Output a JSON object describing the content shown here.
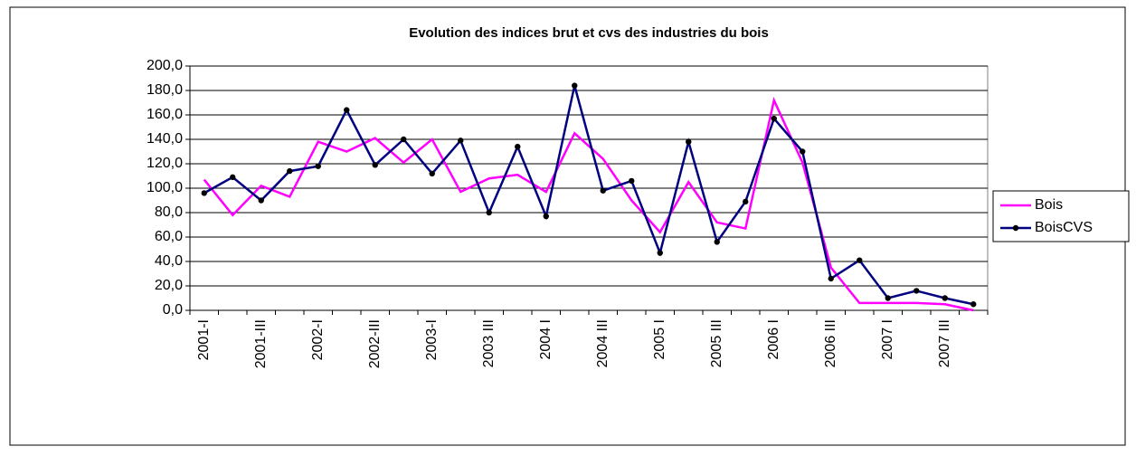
{
  "chart_data": {
    "type": "line",
    "title": "Evolution des indices brut et cvs des industries du bois",
    "categories": [
      "2001-I",
      null,
      "2001-III",
      null,
      "2002-I",
      null,
      "2002-III",
      null,
      "2003-I",
      null,
      "2003 III",
      null,
      "2004 I",
      null,
      "2004 III",
      null,
      "2005 I",
      null,
      "2005 III",
      null,
      "2006 I",
      null,
      "2006 III",
      null,
      "2007 I",
      null,
      "2007 III",
      null
    ],
    "series": [
      {
        "name": "Bois",
        "color": "#ff00ff",
        "markers": false,
        "values": [
          107,
          78,
          102,
          93,
          138,
          130,
          141,
          121,
          140,
          97,
          108,
          111,
          97,
          145,
          124,
          90,
          64,
          105,
          72,
          67,
          172,
          121,
          35,
          6,
          6,
          6,
          5,
          0
        ]
      },
      {
        "name": "BoisCVS",
        "color": "#000080",
        "markers": true,
        "values": [
          96,
          109,
          90,
          114,
          118,
          164,
          119,
          140,
          112,
          139,
          80,
          134,
          77,
          184,
          98,
          106,
          47,
          138,
          56,
          89,
          157,
          130,
          26,
          41,
          10,
          16,
          10,
          5
        ]
      }
    ],
    "ylim": [
      0,
      200
    ],
    "yticks": [
      {
        "value": 0,
        "label": "0,0"
      },
      {
        "value": 20,
        "label": "20,0"
      },
      {
        "value": 40,
        "label": "40,0"
      },
      {
        "value": 60,
        "label": "60,0"
      },
      {
        "value": 80,
        "label": "80,0"
      },
      {
        "value": 100,
        "label": "100,0"
      },
      {
        "value": 120,
        "label": "120,0"
      },
      {
        "value": 140,
        "label": "140,0"
      },
      {
        "value": 160,
        "label": "160,0"
      },
      {
        "value": 180,
        "label": "180,0"
      },
      {
        "value": 200,
        "label": "200,0"
      }
    ],
    "grid": true,
    "legend": "right"
  }
}
